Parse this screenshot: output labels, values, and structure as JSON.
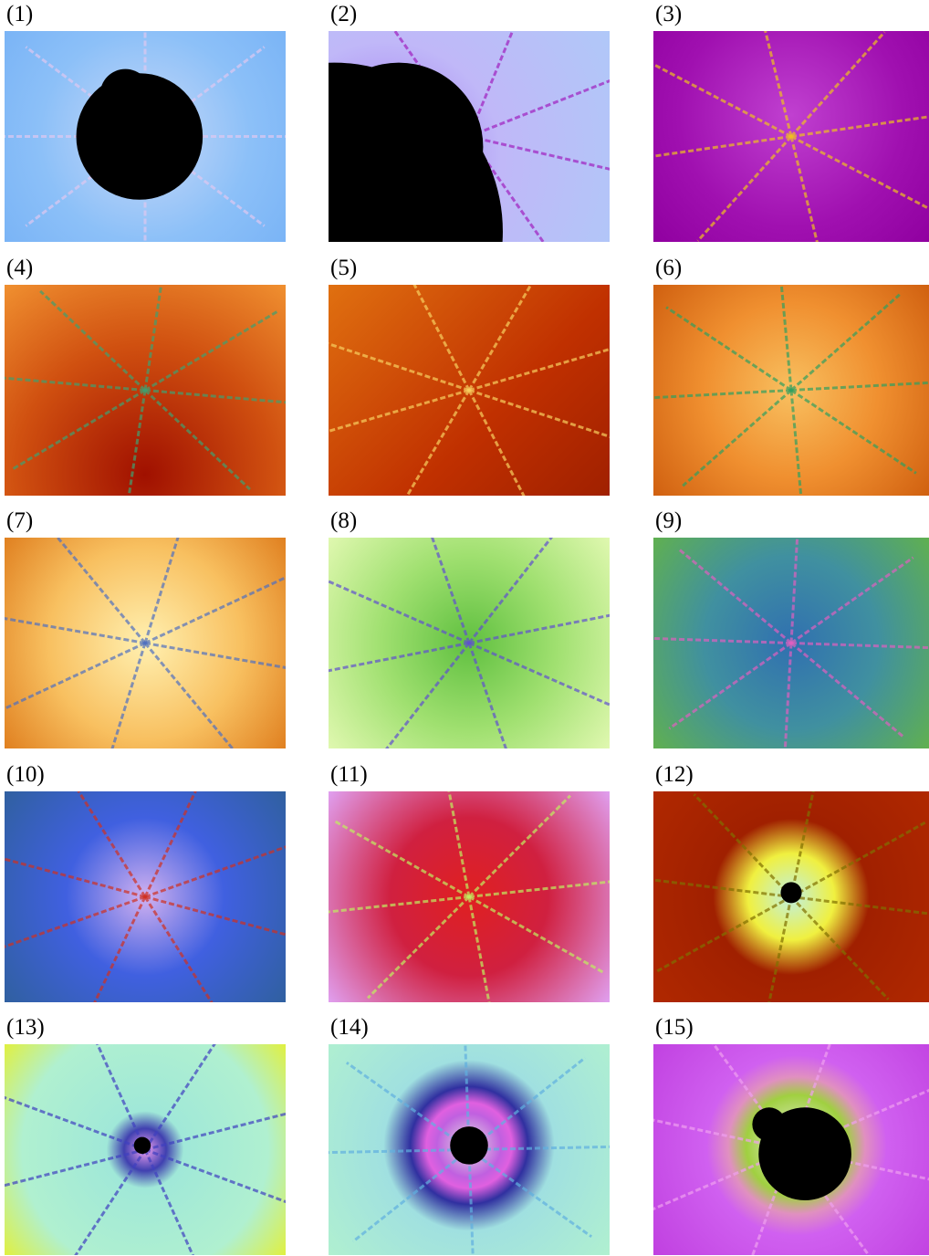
{
  "panels": [
    {
      "label": "(1)"
    },
    {
      "label": "(2)"
    },
    {
      "label": "(3)"
    },
    {
      "label": "(4)"
    },
    {
      "label": "(5)"
    },
    {
      "label": "(6)"
    },
    {
      "label": "(7)"
    },
    {
      "label": "(8)"
    },
    {
      "label": "(9)"
    },
    {
      "label": "(10)"
    },
    {
      "label": "(11)"
    },
    {
      "label": "(12)"
    },
    {
      "label": "(13)"
    },
    {
      "label": "(14)"
    },
    {
      "label": "(15)"
    }
  ]
}
